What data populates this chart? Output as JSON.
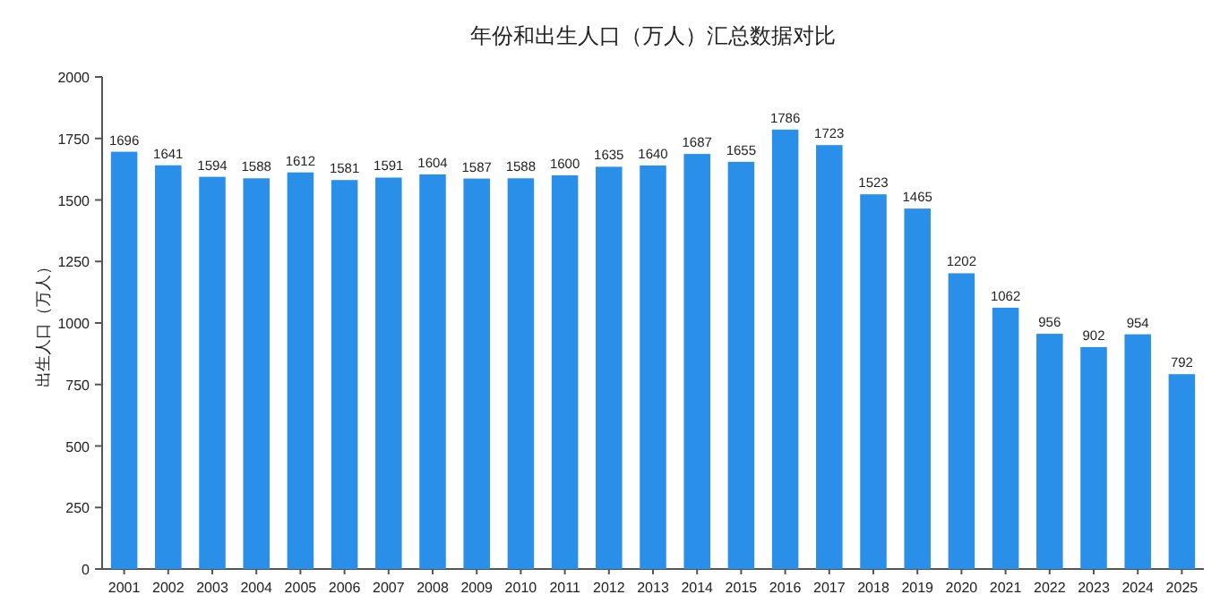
{
  "chart_data": {
    "type": "bar",
    "title": "年份和出生人口（万人）汇总数据对比",
    "ylabel": "出生人口（万人）",
    "categories": [
      "2001",
      "2002",
      "2003",
      "2004",
      "2005",
      "2006",
      "2007",
      "2008",
      "2009",
      "2010",
      "2011",
      "2012",
      "2013",
      "2014",
      "2015",
      "2016",
      "2017",
      "2018",
      "2019",
      "2020",
      "2021",
      "2022",
      "2023",
      "2024",
      "2025"
    ],
    "values": [
      1696,
      1641,
      1594,
      1588,
      1612,
      1581,
      1591,
      1604,
      1587,
      1588,
      1600,
      1635,
      1640,
      1687,
      1655,
      1786,
      1723,
      1523,
      1465,
      1202,
      1062,
      956,
      902,
      954,
      792
    ],
    "color": "#2a8fe8",
    "ylim": [
      0,
      2000
    ],
    "yticks": [
      0,
      250,
      500,
      750,
      1000,
      1250,
      1500,
      1750,
      2000
    ],
    "data_labels": true
  }
}
